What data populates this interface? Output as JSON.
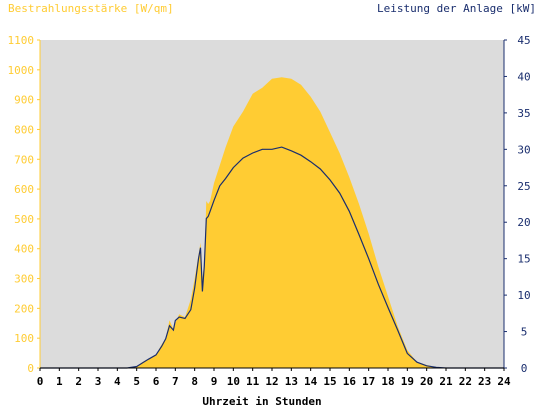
{
  "chart_data": {
    "type": "area",
    "title_left": "Bestrahlungsstärke [W/qm]",
    "title_right": "Leistung der Anlage [kW]",
    "xlabel": "Uhrzeit in Stunden",
    "xlim": [
      0,
      24
    ],
    "ylim_left": [
      0,
      1100
    ],
    "ylim_right": [
      0,
      45
    ],
    "x_ticks": [
      "0",
      "1",
      "2",
      "3",
      "4",
      "5",
      "6",
      "7",
      "8",
      "9",
      "10",
      "11",
      "12",
      "13",
      "14",
      "15",
      "16",
      "17",
      "18",
      "19",
      "20",
      "21",
      "22",
      "23",
      "24"
    ],
    "y_left_ticks": [
      "0",
      "100",
      "200",
      "300",
      "400",
      "500",
      "600",
      "700",
      "800",
      "900",
      "1000",
      "1100"
    ],
    "y_right_ticks": [
      "0",
      "5",
      "10",
      "15",
      "20",
      "25",
      "30",
      "35",
      "40",
      "45"
    ],
    "grid": false,
    "colors": {
      "plot_bg": "#dcdcdc",
      "irradiance_fill": "#ffcc33",
      "power_line": "#1a2e6e",
      "left_axis": "#ffcc33",
      "right_axis": "#1a2e6e"
    },
    "series": [
      {
        "axis": "left",
        "style": "area",
        "x": [
          0,
          4.5,
          5,
          5.3,
          5.6,
          6,
          6.3,
          6.5,
          6.7,
          6.9,
          7,
          7.2,
          7.5,
          7.8,
          8,
          8.2,
          8.3,
          8.4,
          8.5,
          8.6,
          8.7,
          8.8,
          9,
          9.3,
          9.6,
          10,
          10.5,
          11,
          11.5,
          12,
          12.5,
          13,
          13.5,
          14,
          14.5,
          15,
          15.5,
          16,
          16.5,
          17,
          17.5,
          18,
          18.5,
          19,
          19.5,
          20,
          20.5,
          21,
          24
        ],
        "y": [
          0,
          0,
          5,
          20,
          30,
          45,
          80,
          100,
          160,
          130,
          150,
          180,
          170,
          230,
          300,
          380,
          420,
          300,
          350,
          560,
          550,
          560,
          620,
          680,
          740,
          810,
          860,
          920,
          940,
          970,
          975,
          970,
          950,
          910,
          860,
          790,
          720,
          640,
          550,
          450,
          340,
          240,
          140,
          60,
          20,
          10,
          3,
          0,
          0
        ]
      },
      {
        "axis": "right",
        "style": "line",
        "x": [
          0,
          4.5,
          5,
          5.3,
          5.6,
          6,
          6.3,
          6.5,
          6.7,
          6.9,
          7,
          7.2,
          7.5,
          7.8,
          8,
          8.2,
          8.3,
          8.4,
          8.5,
          8.6,
          8.7,
          8.8,
          9,
          9.3,
          9.6,
          10,
          10.5,
          11,
          11.5,
          12,
          12.5,
          13,
          13.5,
          14,
          14.5,
          15,
          15.5,
          16,
          16.5,
          17,
          17.5,
          18,
          18.5,
          19,
          19.5,
          20,
          20.5,
          21,
          24
        ],
        "y": [
          0,
          0,
          0.2,
          0.7,
          1.2,
          1.8,
          3.0,
          4.0,
          5.8,
          5.2,
          6.5,
          7.0,
          6.8,
          8.0,
          11,
          15,
          16.5,
          10.5,
          14,
          20.5,
          20.8,
          21.5,
          23.0,
          25.0,
          26.0,
          27.5,
          28.8,
          29.5,
          30.0,
          30.0,
          30.3,
          29.8,
          29.2,
          28.3,
          27.3,
          25.8,
          24.0,
          21.5,
          18.3,
          15.0,
          11.5,
          8.3,
          5.2,
          2.0,
          0.8,
          0.3,
          0.1,
          0,
          0
        ]
      }
    ]
  }
}
